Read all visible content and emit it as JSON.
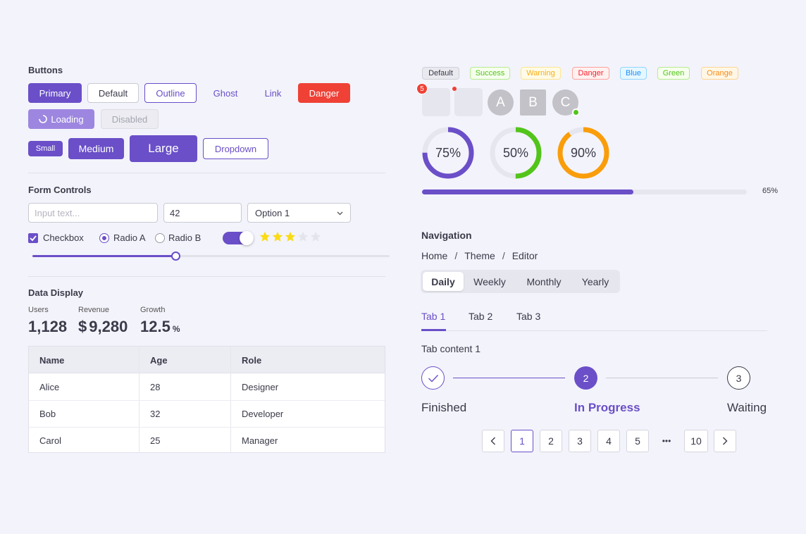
{
  "colors": {
    "accent": "#6a4fc8",
    "danger": "#ef4136",
    "success": "#52c41a",
    "warning": "#fa9d0a",
    "star": "#fadb14"
  },
  "buttons": {
    "title": "Buttons",
    "primary": "Primary",
    "default": "Default",
    "outline": "Outline",
    "ghost": "Ghost",
    "link": "Link",
    "danger": "Danger",
    "loading": "Loading",
    "disabled": "Disabled",
    "small": "Small",
    "medium": "Medium",
    "large": "Large",
    "dropdown": "Dropdown"
  },
  "form": {
    "title": "Form Controls",
    "text_placeholder": "Input text...",
    "number_value": "42",
    "select_value": "Option 1",
    "checkbox_label": "Checkbox",
    "checkbox_checked": true,
    "radio_a": "Radio A",
    "radio_b": "Radio B",
    "radio_selected": "Radio A",
    "toggle_on": true,
    "rating": 3,
    "rating_max": 5,
    "slider_value": 0.4
  },
  "data_display": {
    "title": "Data Display",
    "stats": [
      {
        "label": "Users",
        "value": "1,128",
        "prefix": "",
        "suffix": ""
      },
      {
        "label": "Revenue",
        "value": "9,280",
        "prefix": "$",
        "suffix": ""
      },
      {
        "label": "Growth",
        "value": "12.5",
        "prefix": "",
        "suffix": "%"
      }
    ],
    "table": {
      "headers": [
        "Name",
        "Age",
        "Role"
      ],
      "rows": [
        [
          "Alice",
          "28",
          "Designer"
        ],
        [
          "Bob",
          "32",
          "Developer"
        ],
        [
          "Carol",
          "25",
          "Manager"
        ]
      ]
    }
  },
  "tags": [
    "Default",
    "Success",
    "Warning",
    "Danger",
    "Blue",
    "Green",
    "Orange"
  ],
  "badges": {
    "count": "5"
  },
  "avatars": [
    "A",
    "B",
    "C"
  ],
  "progress_rings": [
    {
      "label": "75%",
      "value": 75,
      "color": "#6a4fc8"
    },
    {
      "label": "50%",
      "value": 50,
      "color": "#52c41a"
    },
    {
      "label": "90%",
      "value": 90,
      "color": "#fa9d0a"
    }
  ],
  "progress_bar": {
    "value": 65,
    "label": "65%"
  },
  "navigation": {
    "title": "Navigation",
    "breadcrumb": [
      "Home",
      "Theme",
      "Editor"
    ],
    "breadcrumb_sep": "/",
    "segmented": [
      "Daily",
      "Weekly",
      "Monthly",
      "Yearly"
    ],
    "segmented_active": "Daily",
    "tabs": [
      "Tab 1",
      "Tab 2",
      "Tab 3"
    ],
    "tab_active": "Tab 1",
    "tab_content": "Tab content 1"
  },
  "steps": [
    {
      "label": "Finished",
      "number": "",
      "state": "done"
    },
    {
      "label": "In Progress",
      "number": "2",
      "state": "active"
    },
    {
      "label": "Waiting",
      "number": "3",
      "state": "wait"
    }
  ],
  "pagination": {
    "pages": [
      "1",
      "2",
      "3",
      "4",
      "5"
    ],
    "ellipsis": "•••",
    "last": "10",
    "current": "1"
  }
}
